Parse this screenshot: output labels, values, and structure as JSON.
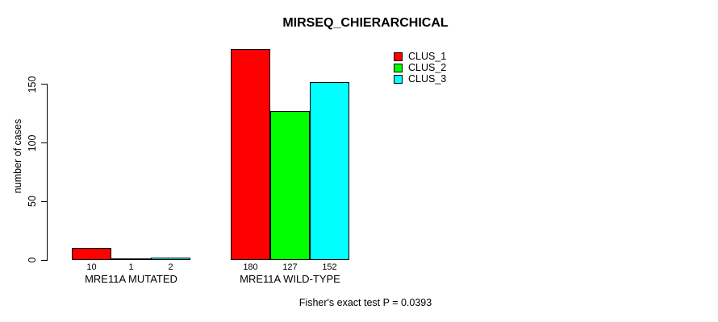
{
  "chart_data": {
    "type": "bar",
    "title": "MIRSEQ_CHIERARCHICAL",
    "categories": [
      "MRE11A MUTATED",
      "MRE11A WILD-TYPE"
    ],
    "series": [
      {
        "name": "CLUS_1",
        "color": "#FF0000",
        "values": [
          10,
          180
        ]
      },
      {
        "name": "CLUS_2",
        "color": "#00FF00",
        "values": [
          1,
          127
        ]
      },
      {
        "name": "CLUS_3",
        "color": "#00FFFF",
        "values": [
          2,
          152
        ]
      }
    ],
    "xlabel": "",
    "ylabel": "number of cases",
    "ylim": [
      0,
      185
    ],
    "yticks": [
      0,
      50,
      100,
      150
    ],
    "grid": false,
    "legend_position": "top-right",
    "bar_border_color": "#000000",
    "axis_color": "#000000",
    "annotation": "Fisher's exact test P = 0.0393"
  }
}
